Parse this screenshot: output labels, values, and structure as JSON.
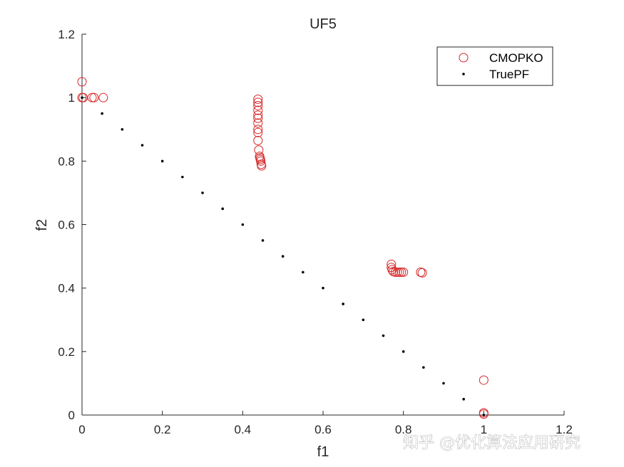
{
  "chart_data": {
    "type": "scatter",
    "title": "UF5",
    "xlabel": "f1",
    "ylabel": "f2",
    "xlim": [
      0,
      1.2
    ],
    "ylim": [
      0,
      1.2
    ],
    "xticks": [
      0,
      0.2,
      0.4,
      0.6,
      0.8,
      1,
      1.2
    ],
    "yticks": [
      0,
      0.2,
      0.4,
      0.6,
      0.8,
      1,
      1.2
    ],
    "xtick_labels": [
      "0",
      "0.2",
      "0.4",
      "0.6",
      "0.8",
      "1",
      "1.2"
    ],
    "ytick_labels": [
      "0",
      "0.2",
      "0.4",
      "0.6",
      "0.8",
      "1",
      "1.2"
    ],
    "grid": false,
    "legend": "top-right",
    "series": [
      {
        "name": "CMOPKO",
        "marker": "open-circle",
        "color": "#d62728",
        "points": [
          [
            0.0,
            1.05
          ],
          [
            0.0,
            1.0
          ],
          [
            0.003,
            1.0
          ],
          [
            0.025,
            1.0
          ],
          [
            0.03,
            1.0
          ],
          [
            0.053,
            1.0
          ],
          [
            0.438,
            0.995
          ],
          [
            0.438,
            0.985
          ],
          [
            0.438,
            0.975
          ],
          [
            0.438,
            0.96
          ],
          [
            0.438,
            0.945
          ],
          [
            0.438,
            0.935
          ],
          [
            0.438,
            0.92
          ],
          [
            0.438,
            0.9
          ],
          [
            0.438,
            0.89
          ],
          [
            0.438,
            0.865
          ],
          [
            0.44,
            0.835
          ],
          [
            0.442,
            0.815
          ],
          [
            0.443,
            0.81
          ],
          [
            0.444,
            0.805
          ],
          [
            0.445,
            0.8
          ],
          [
            0.446,
            0.79
          ],
          [
            0.447,
            0.785
          ],
          [
            0.77,
            0.475
          ],
          [
            0.77,
            0.465
          ],
          [
            0.772,
            0.458
          ],
          [
            0.775,
            0.452
          ],
          [
            0.78,
            0.45
          ],
          [
            0.785,
            0.45
          ],
          [
            0.79,
            0.45
          ],
          [
            0.795,
            0.45
          ],
          [
            0.8,
            0.45
          ],
          [
            0.843,
            0.45
          ],
          [
            0.847,
            0.448
          ],
          [
            1.0,
            0.11
          ],
          [
            1.0,
            0.007
          ],
          [
            1.0,
            0.003
          ]
        ]
      },
      {
        "name": "TruePF",
        "marker": "dot",
        "color": "#000000",
        "points": [
          [
            0.0,
            1.0
          ],
          [
            0.05,
            0.95
          ],
          [
            0.1,
            0.9
          ],
          [
            0.15,
            0.85
          ],
          [
            0.2,
            0.8
          ],
          [
            0.25,
            0.75
          ],
          [
            0.3,
            0.7
          ],
          [
            0.35,
            0.65
          ],
          [
            0.4,
            0.6
          ],
          [
            0.45,
            0.55
          ],
          [
            0.5,
            0.5
          ],
          [
            0.55,
            0.45
          ],
          [
            0.6,
            0.4
          ],
          [
            0.65,
            0.35
          ],
          [
            0.7,
            0.3
          ],
          [
            0.75,
            0.25
          ],
          [
            0.8,
            0.2
          ],
          [
            0.85,
            0.15
          ],
          [
            0.9,
            0.1
          ],
          [
            0.95,
            0.05
          ],
          [
            1.0,
            0.0
          ]
        ]
      }
    ]
  },
  "watermark": "知乎 @优化算法应用研究"
}
